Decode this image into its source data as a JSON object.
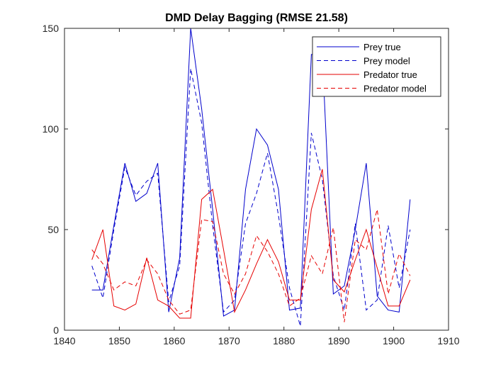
{
  "chart_data": {
    "type": "line",
    "title": "DMD Delay Bagging (RMSE 21.58)",
    "xlabel": "",
    "ylabel": "",
    "xlim": [
      1840,
      1910
    ],
    "ylim": [
      0,
      150
    ],
    "xticks": [
      1840,
      1850,
      1860,
      1870,
      1880,
      1890,
      1900,
      1910
    ],
    "yticks": [
      0,
      50,
      100,
      150
    ],
    "grid": false,
    "legend_position": "top-right",
    "series": [
      {
        "name": "Prey true",
        "color": "#0000cc",
        "style": "solid",
        "x": [
          1845,
          1847,
          1849,
          1851,
          1853,
          1855,
          1857,
          1859,
          1861,
          1863,
          1865,
          1867,
          1869,
          1871,
          1873,
          1875,
          1877,
          1879,
          1881,
          1883,
          1885,
          1887,
          1889,
          1891,
          1893,
          1895,
          1897,
          1899,
          1901,
          1903
        ],
        "y": [
          20,
          20,
          52,
          83,
          64,
          68,
          83,
          9,
          36,
          150,
          110,
          60,
          7,
          10,
          70,
          100,
          92,
          70,
          10,
          11,
          137,
          137,
          18,
          22,
          50,
          83,
          17,
          10,
          9,
          65
        ]
      },
      {
        "name": "Prey model",
        "color": "#0000cc",
        "style": "dashed",
        "x": [
          1845,
          1847,
          1849,
          1851,
          1853,
          1855,
          1857,
          1859,
          1861,
          1863,
          1865,
          1867,
          1869,
          1871,
          1873,
          1875,
          1877,
          1879,
          1881,
          1883,
          1885,
          1887,
          1889,
          1891,
          1893,
          1895,
          1897,
          1899,
          1901,
          1903
        ],
        "y": [
          32,
          16,
          50,
          81,
          67,
          74,
          78,
          14,
          32,
          130,
          103,
          52,
          9,
          15,
          53,
          68,
          88,
          57,
          21,
          2,
          98,
          75,
          27,
          10,
          53,
          10,
          15,
          52,
          21,
          50
        ]
      },
      {
        "name": "Predator true",
        "color": "#e60000",
        "style": "solid",
        "x": [
          1845,
          1847,
          1849,
          1851,
          1853,
          1855,
          1857,
          1859,
          1861,
          1863,
          1865,
          1867,
          1869,
          1871,
          1873,
          1875,
          1877,
          1879,
          1881,
          1883,
          1885,
          1887,
          1889,
          1891,
          1893,
          1895,
          1897,
          1899,
          1901,
          1903
        ],
        "y": [
          35,
          50,
          12,
          10,
          13,
          36,
          15,
          12,
          6,
          6,
          65,
          70,
          40,
          9,
          20,
          33,
          45,
          34,
          15,
          15,
          60,
          80,
          25,
          19,
          35,
          50,
          31,
          12,
          12,
          25
        ]
      },
      {
        "name": "Predator model",
        "color": "#e60000",
        "style": "dashed",
        "x": [
          1845,
          1847,
          1849,
          1851,
          1853,
          1855,
          1857,
          1859,
          1861,
          1863,
          1865,
          1867,
          1869,
          1871,
          1873,
          1875,
          1877,
          1879,
          1881,
          1883,
          1885,
          1887,
          1889,
          1891,
          1893,
          1895,
          1897,
          1899,
          1901,
          1903
        ],
        "y": [
          40,
          33,
          20,
          24,
          22,
          35,
          28,
          15,
          8,
          10,
          55,
          54,
          28,
          18,
          28,
          47,
          39,
          28,
          12,
          16,
          37,
          28,
          51,
          4,
          45,
          40,
          60,
          18,
          38,
          27
        ]
      }
    ]
  }
}
